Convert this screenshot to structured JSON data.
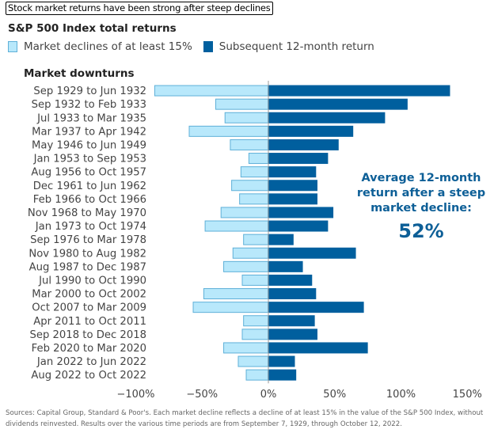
{
  "title": "Stock market returns have been strong after steep declines",
  "subtitle": "S&P 500 Index total returns",
  "category_header": "Market downturns",
  "annotation": {
    "lines": [
      "Average 12-month",
      "return after a steep",
      "market decline:"
    ],
    "value": "52%"
  },
  "source": "Sources: Capital Group, Standard & Poor's. Each market decline reflects a decline of at least 15% in the value of the S&P 500 Index, without dividends reinvested. Results over the various time periods are from September 7, 1929, through October 12, 2022.",
  "colors": {
    "decline_fill": "#b8e8fb",
    "decline_border": "#5fb0d8",
    "return_fill": "#005f9e",
    "zero_line": "#9a9a9a",
    "annotation": "#0d5f97"
  },
  "chart_data": {
    "type": "bar",
    "orientation": "horizontal",
    "title": "S&P 500 Index total returns",
    "xlabel": "",
    "ylabel": "Market downturns",
    "xlim": [
      -100,
      150
    ],
    "xticks": [
      -100,
      -50,
      0,
      50,
      100,
      150
    ],
    "xtick_labels": [
      "−100%",
      "−50%",
      "0%",
      "50%",
      "100%",
      "150%"
    ],
    "grid": false,
    "legend_position": "top-left",
    "categories": [
      "Sep 1929 to Jun 1932",
      "Sep 1932 to Feb 1933",
      "Jul 1933 to Mar 1935",
      "Mar 1937 to Apr 1942",
      "May 1946 to Jun 1949",
      "Jan 1953 to Sep 1953",
      "Aug 1956 to Oct 1957",
      "Dec 1961 to Jun 1962",
      "Feb 1966 to Oct 1966",
      "Nov 1968 to May 1970",
      "Jan 1973 to Oct 1974",
      "Sep 1976 to Mar 1978",
      "Nov 1980 to Aug 1982",
      "Aug 1987 to Dec 1987",
      "Jul 1990 to Oct 1990",
      "Mar 2000 to Oct 2002",
      "Oct 2007 to Mar 2009",
      "Apr 2011 to Oct 2011",
      "Sep 2018 to Dec 2018",
      "Feb 2020 to Mar 2020",
      "Jan 2022 to Jun 2022",
      "Aug 2022 to Oct 2022"
    ],
    "series": [
      {
        "name": "Market declines of at least 15%",
        "values": [
          -86,
          -40,
          -33,
          -60,
          -29,
          -15,
          -21,
          -28,
          -22,
          -36,
          -48,
          -19,
          -27,
          -34,
          -20,
          -49,
          -57,
          -19,
          -20,
          -34,
          -23,
          -17
        ]
      },
      {
        "name": "Subsequent 12-month return",
        "values": [
          137,
          105,
          88,
          64,
          53,
          45,
          36,
          37,
          37,
          49,
          45,
          19,
          66,
          26,
          33,
          36,
          72,
          35,
          37,
          75,
          20,
          21
        ]
      }
    ]
  }
}
